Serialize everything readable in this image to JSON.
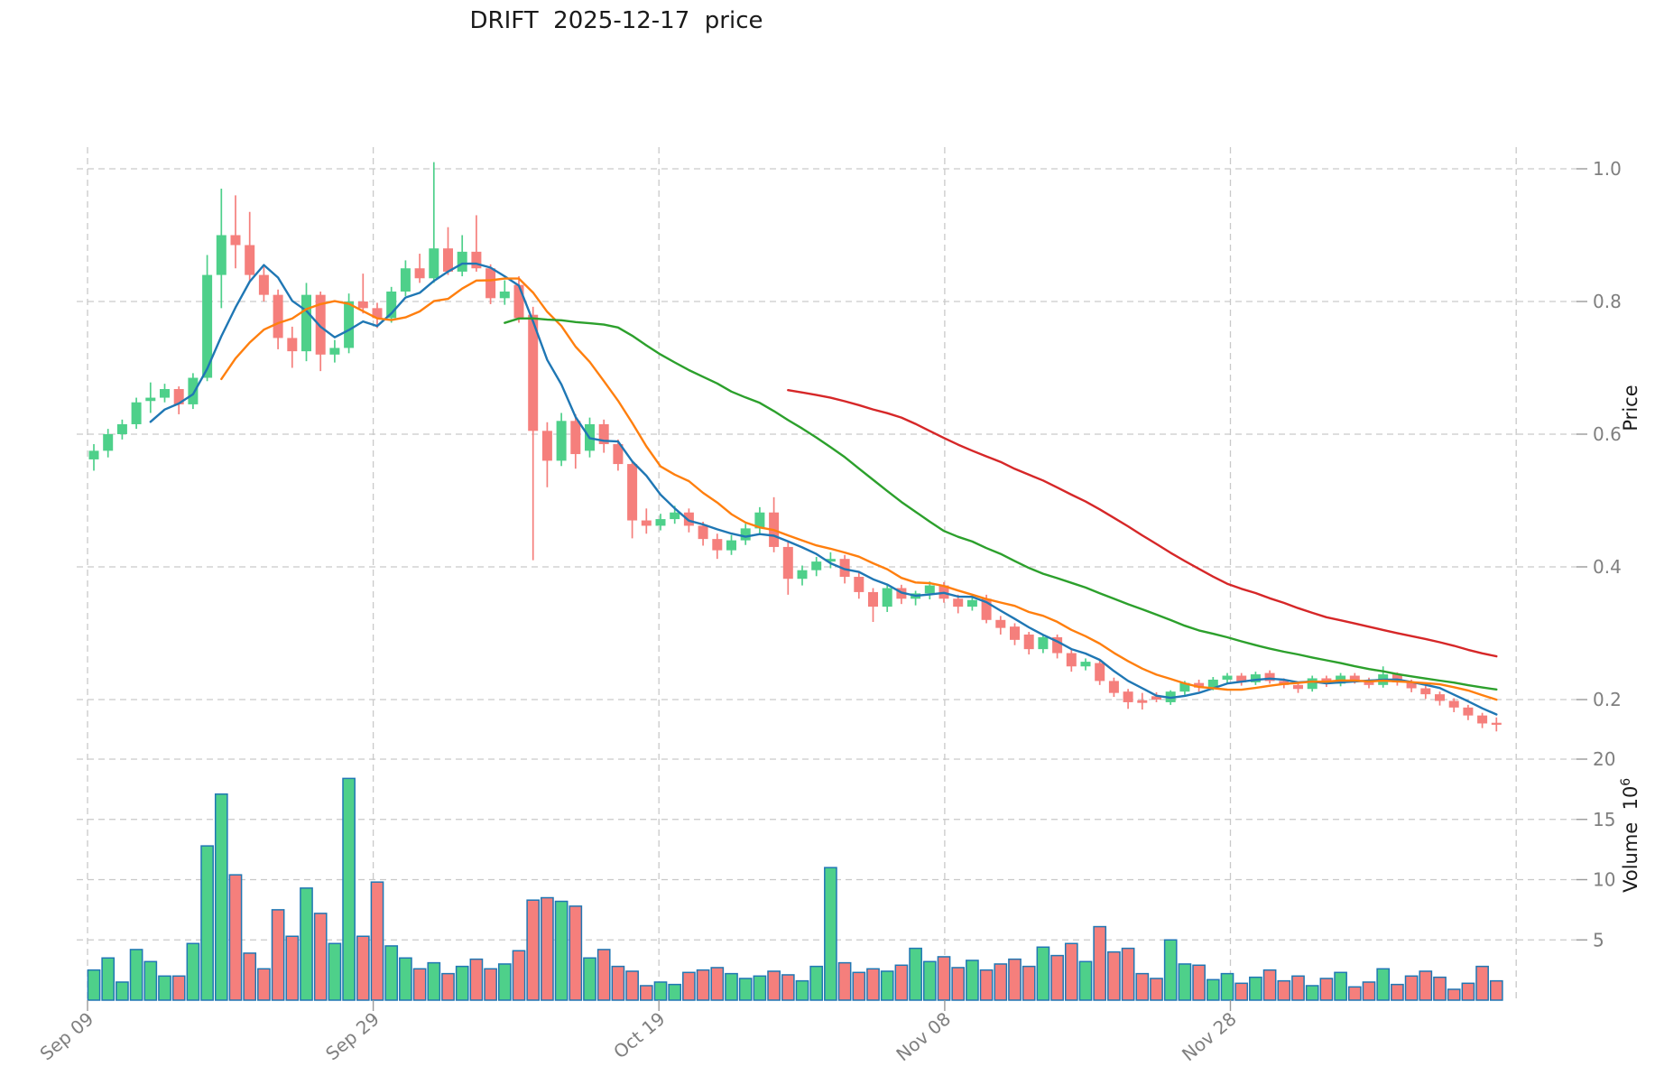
{
  "header": {
    "title": "DRIFT  2025-12-17  price"
  },
  "chart_data": {
    "type": "candlestick",
    "title": "DRIFT  2025-12-17  price",
    "symbol": "DRIFT",
    "date": "2025-12-17",
    "start_date": "2025-09-09",
    "x_tick_labels": [
      "Sep 09",
      "Sep 29",
      "Oct 19",
      "Nov 08",
      "Nov 28"
    ],
    "x_gridline_count": 6,
    "ylabel_price": "Price",
    "ylabel_volume_base": "Volume  10",
    "ylabel_volume_exp": "6",
    "price_ticks": [
      1.0,
      0.8,
      0.6,
      0.4,
      0.2
    ],
    "price_tick_labels": [
      "1.0",
      "0.8",
      "0.6",
      "0.4",
      "0.2"
    ],
    "volume_ticks": [
      20,
      15,
      10,
      5
    ],
    "volume_tick_labels": [
      "20",
      "15",
      "10",
      "5"
    ],
    "volume_unit": 1000000,
    "grid": true,
    "legend_position": "none",
    "moving_averages": [
      {
        "name": "SMA5",
        "period": 5,
        "color": "#1f77b4"
      },
      {
        "name": "SMA10",
        "period": 10,
        "color": "#ff7f0e"
      },
      {
        "name": "SMA30",
        "period": 30,
        "color": "#2ca02c"
      },
      {
        "name": "SMA50",
        "period": 50,
        "color": "#d62728"
      }
    ],
    "colors": {
      "up": "#4ed08a",
      "down": "#f57f7c",
      "volume_edge": "#2077b4",
      "grid": "#c9c9c9",
      "tick_text": "#7f7f7f",
      "axis_text": "#1a1a1a"
    },
    "ohlcv_columns": [
      "open",
      "high",
      "low",
      "close",
      "volume_millions"
    ],
    "ohlcv": [
      [
        0.562,
        0.585,
        0.545,
        0.575,
        2.5
      ],
      [
        0.575,
        0.608,
        0.565,
        0.6,
        3.5
      ],
      [
        0.6,
        0.622,
        0.592,
        0.615,
        1.5
      ],
      [
        0.615,
        0.655,
        0.608,
        0.648,
        4.2
      ],
      [
        0.65,
        0.678,
        0.632,
        0.655,
        3.2
      ],
      [
        0.655,
        0.676,
        0.648,
        0.668,
        2.0
      ],
      [
        0.668,
        0.672,
        0.63,
        0.645,
        2.0
      ],
      [
        0.645,
        0.692,
        0.638,
        0.685,
        4.7
      ],
      [
        0.685,
        0.87,
        0.68,
        0.84,
        12.8
      ],
      [
        0.84,
        0.97,
        0.79,
        0.9,
        17.1
      ],
      [
        0.9,
        0.96,
        0.85,
        0.885,
        10.4
      ],
      [
        0.885,
        0.935,
        0.83,
        0.84,
        3.9
      ],
      [
        0.84,
        0.852,
        0.8,
        0.81,
        2.6
      ],
      [
        0.81,
        0.818,
        0.728,
        0.745,
        7.5
      ],
      [
        0.745,
        0.762,
        0.7,
        0.725,
        5.3
      ],
      [
        0.725,
        0.828,
        0.71,
        0.81,
        9.3
      ],
      [
        0.81,
        0.815,
        0.695,
        0.72,
        7.2
      ],
      [
        0.72,
        0.742,
        0.708,
        0.73,
        4.7
      ],
      [
        0.73,
        0.812,
        0.722,
        0.8,
        18.4
      ],
      [
        0.8,
        0.842,
        0.782,
        0.79,
        5.3
      ],
      [
        0.79,
        0.798,
        0.76,
        0.775,
        9.8
      ],
      [
        0.775,
        0.822,
        0.768,
        0.815,
        4.5
      ],
      [
        0.815,
        0.862,
        0.808,
        0.85,
        3.5
      ],
      [
        0.85,
        0.872,
        0.828,
        0.835,
        2.6
      ],
      [
        0.835,
        1.01,
        0.828,
        0.88,
        3.1
      ],
      [
        0.88,
        0.912,
        0.84,
        0.845,
        2.2
      ],
      [
        0.845,
        0.9,
        0.838,
        0.875,
        2.8
      ],
      [
        0.875,
        0.93,
        0.845,
        0.85,
        3.4
      ],
      [
        0.85,
        0.856,
        0.796,
        0.805,
        2.6
      ],
      [
        0.805,
        0.832,
        0.795,
        0.815,
        3.0
      ],
      [
        0.825,
        0.838,
        0.768,
        0.775,
        4.1
      ],
      [
        0.78,
        0.792,
        0.41,
        0.605,
        8.3
      ],
      [
        0.605,
        0.618,
        0.52,
        0.56,
        8.5
      ],
      [
        0.56,
        0.632,
        0.552,
        0.62,
        8.2
      ],
      [
        0.62,
        0.63,
        0.548,
        0.57,
        7.8
      ],
      [
        0.575,
        0.625,
        0.565,
        0.615,
        3.5
      ],
      [
        0.615,
        0.622,
        0.572,
        0.585,
        4.2
      ],
      [
        0.585,
        0.592,
        0.545,
        0.555,
        2.8
      ],
      [
        0.555,
        0.56,
        0.443,
        0.47,
        2.4
      ],
      [
        0.47,
        0.488,
        0.45,
        0.462,
        1.2
      ],
      [
        0.462,
        0.48,
        0.455,
        0.472,
        1.5
      ],
      [
        0.472,
        0.492,
        0.465,
        0.482,
        1.3
      ],
      [
        0.482,
        0.488,
        0.452,
        0.462,
        2.3
      ],
      [
        0.462,
        0.468,
        0.432,
        0.442,
        2.5
      ],
      [
        0.442,
        0.45,
        0.412,
        0.425,
        2.7
      ],
      [
        0.425,
        0.448,
        0.418,
        0.44,
        2.2
      ],
      [
        0.44,
        0.465,
        0.433,
        0.458,
        1.8
      ],
      [
        0.458,
        0.49,
        0.45,
        0.482,
        2.0
      ],
      [
        0.482,
        0.505,
        0.422,
        0.43,
        2.4
      ],
      [
        0.43,
        0.438,
        0.358,
        0.382,
        2.1
      ],
      [
        0.382,
        0.402,
        0.372,
        0.395,
        1.6
      ],
      [
        0.395,
        0.415,
        0.386,
        0.408,
        2.8
      ],
      [
        0.408,
        0.422,
        0.398,
        0.412,
        11.0
      ],
      [
        0.412,
        0.418,
        0.375,
        0.385,
        3.1
      ],
      [
        0.385,
        0.392,
        0.352,
        0.362,
        2.3
      ],
      [
        0.362,
        0.368,
        0.317,
        0.34,
        2.6
      ],
      [
        0.34,
        0.372,
        0.332,
        0.368,
        2.4
      ],
      [
        0.368,
        0.373,
        0.344,
        0.352,
        2.9
      ],
      [
        0.352,
        0.364,
        0.342,
        0.36,
        4.3
      ],
      [
        0.36,
        0.378,
        0.351,
        0.372,
        3.2
      ],
      [
        0.372,
        0.377,
        0.346,
        0.352,
        3.6
      ],
      [
        0.352,
        0.358,
        0.33,
        0.34,
        2.7
      ],
      [
        0.34,
        0.356,
        0.334,
        0.35,
        3.3
      ],
      [
        0.352,
        0.358,
        0.315,
        0.32,
        2.5
      ],
      [
        0.32,
        0.326,
        0.298,
        0.308,
        3.0
      ],
      [
        0.31,
        0.315,
        0.282,
        0.29,
        3.4
      ],
      [
        0.298,
        0.302,
        0.268,
        0.276,
        2.8
      ],
      [
        0.276,
        0.298,
        0.27,
        0.294,
        4.4
      ],
      [
        0.294,
        0.298,
        0.262,
        0.27,
        3.7
      ],
      [
        0.27,
        0.275,
        0.242,
        0.25,
        4.7
      ],
      [
        0.25,
        0.262,
        0.244,
        0.257,
        3.2
      ],
      [
        0.255,
        0.26,
        0.222,
        0.228,
        6.1
      ],
      [
        0.228,
        0.233,
        0.204,
        0.21,
        4.0
      ],
      [
        0.212,
        0.216,
        0.186,
        0.196,
        4.3
      ],
      [
        0.199,
        0.21,
        0.185,
        0.195,
        2.2
      ],
      [
        0.205,
        0.211,
        0.196,
        0.2,
        1.8
      ],
      [
        0.196,
        0.214,
        0.192,
        0.212,
        5.0
      ],
      [
        0.212,
        0.228,
        0.207,
        0.225,
        3.0
      ],
      [
        0.225,
        0.23,
        0.212,
        0.218,
        2.9
      ],
      [
        0.218,
        0.234,
        0.214,
        0.23,
        1.7
      ],
      [
        0.23,
        0.24,
        0.225,
        0.236,
        2.2
      ],
      [
        0.236,
        0.24,
        0.221,
        0.226,
        1.4
      ],
      [
        0.226,
        0.242,
        0.222,
        0.238,
        1.9
      ],
      [
        0.24,
        0.244,
        0.224,
        0.228,
        2.5
      ],
      [
        0.228,
        0.232,
        0.217,
        0.222,
        1.6
      ],
      [
        0.222,
        0.226,
        0.21,
        0.216,
        2.0
      ],
      [
        0.216,
        0.236,
        0.212,
        0.232,
        1.2
      ],
      [
        0.232,
        0.236,
        0.219,
        0.224,
        1.8
      ],
      [
        0.224,
        0.24,
        0.22,
        0.236,
        2.3
      ],
      [
        0.236,
        0.24,
        0.224,
        0.229,
        1.1
      ],
      [
        0.229,
        0.233,
        0.217,
        0.222,
        1.5
      ],
      [
        0.222,
        0.25,
        0.218,
        0.238,
        2.6
      ],
      [
        0.238,
        0.241,
        0.221,
        0.226,
        1.3
      ],
      [
        0.226,
        0.23,
        0.211,
        0.217,
        2.0
      ],
      [
        0.217,
        0.221,
        0.201,
        0.208,
        2.4
      ],
      [
        0.208,
        0.212,
        0.191,
        0.198,
        1.9
      ],
      [
        0.198,
        0.202,
        0.181,
        0.188,
        0.9
      ],
      [
        0.188,
        0.192,
        0.169,
        0.176,
        1.4
      ],
      [
        0.176,
        0.18,
        0.157,
        0.164,
        2.8
      ],
      [
        0.165,
        0.173,
        0.152,
        0.162,
        1.6
      ]
    ]
  }
}
